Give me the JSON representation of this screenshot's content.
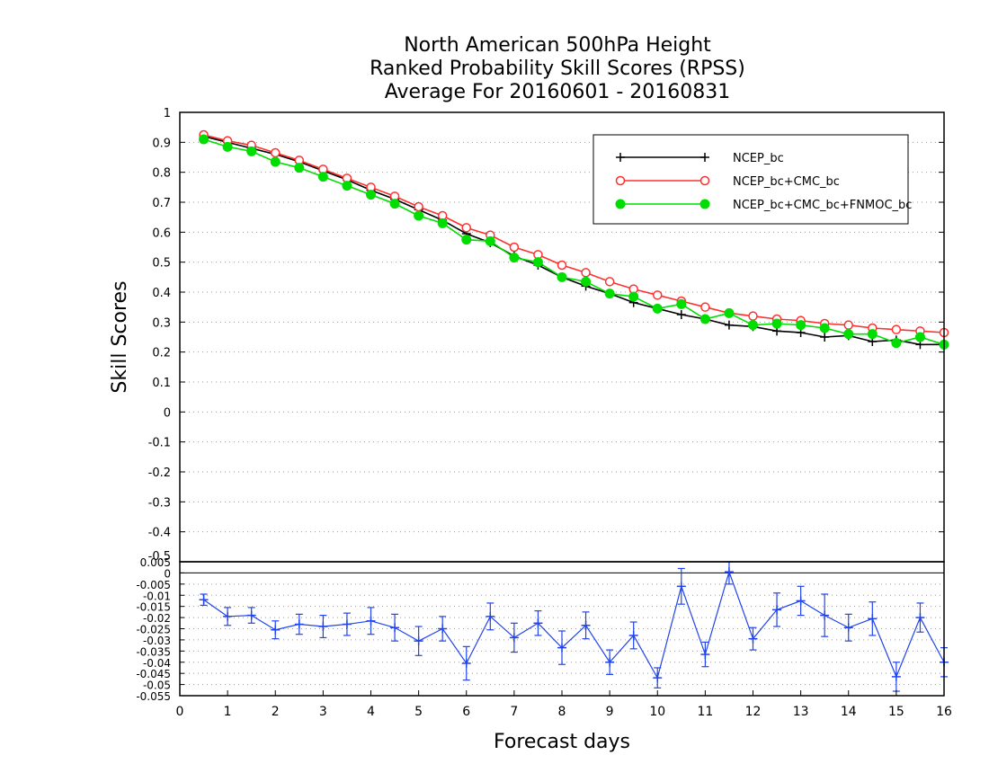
{
  "chart_data": [
    {
      "type": "line",
      "title": [
        "North American 500hPa Height",
        "Ranked Probability Skill Scores (RPSS)",
        "Average For 20160601 - 20160831"
      ],
      "ylabel": "Skill Scores",
      "xlabel": "Forecast days",
      "xlim": [
        0,
        16
      ],
      "ylim": [
        -0.5,
        1
      ],
      "x_ticks": [
        "0",
        "1",
        "2",
        "3",
        "4",
        "5",
        "6",
        "7",
        "8",
        "9",
        "10",
        "11",
        "12",
        "13",
        "14",
        "15",
        "16"
      ],
      "y_ticks": [
        "-0.5",
        "-0.4",
        "-0.3",
        "-0.2",
        "-0.1",
        "0",
        "0.1",
        "0.2",
        "0.3",
        "0.4",
        "0.5",
        "0.6",
        "0.7",
        "0.8",
        "0.9",
        "1"
      ],
      "grid": "dotted horizontal",
      "legend_position": "top-right",
      "x": [
        0.5,
        1,
        1.5,
        2,
        2.5,
        3,
        3.5,
        4,
        4.5,
        5,
        5.5,
        6,
        6.5,
        7,
        7.5,
        8,
        8.5,
        9,
        9.5,
        10,
        10.5,
        11,
        11.5,
        12,
        12.5,
        13,
        13.5,
        14,
        14.5,
        15,
        15.5,
        16
      ],
      "series": [
        {
          "name": "NCEP_bc",
          "color": "#000000",
          "marker": "plus",
          "values": [
            0.92,
            0.9,
            0.88,
            0.86,
            0.835,
            0.805,
            0.775,
            0.74,
            0.71,
            0.675,
            0.64,
            0.595,
            0.565,
            0.52,
            0.49,
            0.45,
            0.42,
            0.395,
            0.365,
            0.345,
            0.325,
            0.31,
            0.29,
            0.285,
            0.27,
            0.265,
            0.25,
            0.255,
            0.235,
            0.24,
            0.225,
            0.225
          ]
        },
        {
          "name": "NCEP_bc+CMC_bc",
          "color": "#ff3030",
          "marker": "open-circle",
          "values": [
            0.925,
            0.905,
            0.89,
            0.865,
            0.84,
            0.81,
            0.78,
            0.75,
            0.72,
            0.685,
            0.655,
            0.615,
            0.59,
            0.55,
            0.525,
            0.49,
            0.465,
            0.435,
            0.41,
            0.39,
            0.37,
            0.35,
            0.33,
            0.32,
            0.31,
            0.305,
            0.295,
            0.29,
            0.28,
            0.275,
            0.27,
            0.265
          ]
        },
        {
          "name": "NCEP_bc+CMC_bc+FNMOC_bc",
          "color": "#00dd00",
          "marker": "filled-circle",
          "values": [
            0.91,
            0.885,
            0.87,
            0.835,
            0.815,
            0.785,
            0.755,
            0.725,
            0.695,
            0.655,
            0.63,
            0.575,
            0.57,
            0.515,
            0.5,
            0.45,
            0.435,
            0.395,
            0.385,
            0.345,
            0.36,
            0.31,
            0.33,
            0.29,
            0.295,
            0.29,
            0.28,
            0.26,
            0.26,
            0.23,
            0.25,
            0.225
          ]
        }
      ]
    },
    {
      "type": "line",
      "xlim": [
        0,
        16
      ],
      "ylim": [
        -0.055,
        0.005
      ],
      "y_ticks": [
        "0.005",
        "0",
        "-0.005",
        "-0.01",
        "-0.015",
        "-0.02",
        "-0.025",
        "-0.03",
        "-0.035",
        "-0.04",
        "-0.045",
        "-0.05",
        "-0.055"
      ],
      "reference_line": 0,
      "grid": "dotted horizontal",
      "series": [
        {
          "color": "#2244ee",
          "marker": "plus",
          "error_bars": true,
          "x": [
            0.5,
            1,
            1.5,
            2,
            2.5,
            3,
            3.5,
            4,
            4.5,
            5,
            5.5,
            6,
            6.5,
            7,
            7.5,
            8,
            8.5,
            9,
            9.5,
            10,
            10.5,
            11,
            11.5,
            12,
            12.5,
            13,
            13.5,
            14,
            14.5,
            15,
            15.5,
            16
          ],
          "values": [
            -0.012,
            -0.0195,
            -0.019,
            -0.0255,
            -0.023,
            -0.024,
            -0.023,
            -0.0215,
            -0.0245,
            -0.0305,
            -0.025,
            -0.0405,
            -0.0195,
            -0.029,
            -0.0225,
            -0.0335,
            -0.0235,
            -0.04,
            -0.028,
            -0.047,
            -0.006,
            -0.0365,
            0.0005,
            -0.0295,
            -0.0165,
            -0.0125,
            -0.019,
            -0.0245,
            -0.0205,
            -0.0465,
            -0.02,
            -0.04
          ],
          "err": [
            0.0025,
            0.004,
            0.0035,
            0.004,
            0.0045,
            0.005,
            0.005,
            0.006,
            0.006,
            0.0065,
            0.0055,
            0.0075,
            0.006,
            0.0065,
            0.0055,
            0.0075,
            0.006,
            0.0055,
            0.006,
            0.0045,
            0.008,
            0.0055,
            0.0055,
            0.005,
            0.0075,
            0.0065,
            0.0095,
            0.006,
            0.0075,
            0.0065,
            0.0065,
            0.0065
          ]
        }
      ]
    }
  ]
}
